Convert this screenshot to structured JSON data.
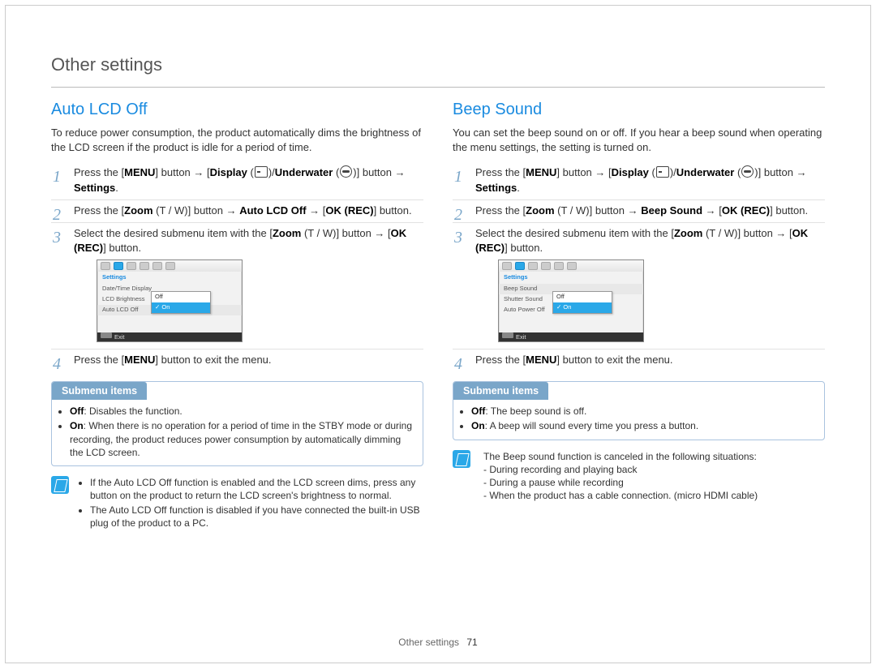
{
  "page": {
    "title": "Other settings",
    "footer_label": "Other settings",
    "page_number": "71"
  },
  "colors": {
    "accent": "#1a8be0",
    "step_number": "#7aa6c9",
    "submenu_tab_bg": "#7aa6c9",
    "note_icon_bg": "#2aa8e8",
    "rule": "#bbbbbb"
  },
  "left": {
    "heading": "Auto LCD Off",
    "intro": "To reduce power consumption, the product automatically dims the brightness of the LCD screen if the product is idle for a period of time.",
    "steps": {
      "s1": {
        "pre": "Press the [",
        "menu": "MENU",
        "mid1": "] button → ",
        "display": "Display",
        "mid2": " (",
        "mid3": ")/",
        "under": "Underwater",
        "mid4": " (",
        "mid5": ")] button → ",
        "settings": "Settings",
        "end": "."
      },
      "s2": {
        "pre": "Press the [",
        "zoom": "Zoom",
        "tw": " (T / W)",
        "mid": "] button → ",
        "target": "Auto LCD Off",
        "arrow": " → [",
        "ok": "OK (REC)",
        "end": "] button."
      },
      "s3": {
        "pre": "Select the desired submenu item with the [",
        "zoom": "Zoom",
        "tw": " (T / W)",
        "mid": "] button → [",
        "ok": "OK (REC)",
        "end": "] button."
      },
      "s4": {
        "pre": "Press the [",
        "menu": "MENU",
        "end": "] button to exit the menu."
      }
    },
    "lcd": {
      "settings_label": "Settings",
      "rows": [
        "Date/Time Display",
        "LCD Brightness",
        "Auto LCD Off"
      ],
      "popup_off": "Off",
      "popup_on": "On",
      "exit_label": "Exit"
    },
    "submenu": {
      "tab": "Submenu items",
      "off_label": "Off",
      "off_text": ": Disables the function.",
      "on_label": "On",
      "on_text": ": When there is no operation for a period of time in the STBY mode or during recording, the product reduces power consumption by automatically dimming the LCD screen."
    },
    "note": {
      "li1": "If the Auto LCD Off function is enabled and the LCD screen dims, press any button on the product to return the LCD screen's brightness to normal.",
      "li2": "The Auto LCD Off function is disabled if you have connected the built-in USB plug of the product to a PC."
    }
  },
  "right": {
    "heading": "Beep Sound",
    "intro": "You can set the beep sound on or off. If you hear a beep sound when operating the menu settings, the setting is turned on.",
    "steps": {
      "s1": {
        "pre": "Press the [",
        "menu": "MENU",
        "mid1": "] button → ",
        "display": "Display",
        "mid2": " (",
        "mid3": ")/",
        "under": "Underwater",
        "mid4": " (",
        "mid5": ")] button → ",
        "settings": "Settings",
        "end": "."
      },
      "s2": {
        "pre": "Press the [",
        "zoom": "Zoom",
        "tw": " (T / W)",
        "mid": "] button → ",
        "target": "Beep Sound",
        "arrow": " → [",
        "ok": "OK (REC)",
        "end": "] button."
      },
      "s3": {
        "pre": "Select the desired submenu item with the [",
        "zoom": "Zoom",
        "tw": " (T / W)",
        "mid": "] button → [",
        "ok": "OK (REC)",
        "end": "] button."
      },
      "s4": {
        "pre": "Press the [",
        "menu": "MENU",
        "end": "] button to exit the menu."
      }
    },
    "lcd": {
      "settings_label": "Settings",
      "rows": [
        "Beep Sound",
        "Shutter Sound",
        "Auto Power Off"
      ],
      "popup_off": "Off",
      "popup_on": "On",
      "exit_label": "Exit"
    },
    "submenu": {
      "tab": "Submenu items",
      "off_label": "Off",
      "off_text": ": The beep sound is off.",
      "on_label": "On",
      "on_text": ": A beep will sound every time you press a button."
    },
    "note": {
      "lead": "The Beep sound function is canceled in the following situations:",
      "li1": "- During recording and playing back",
      "li2": "- During a pause while recording",
      "li3": "- When the product has a cable connection. (micro HDMI cable)"
    }
  }
}
